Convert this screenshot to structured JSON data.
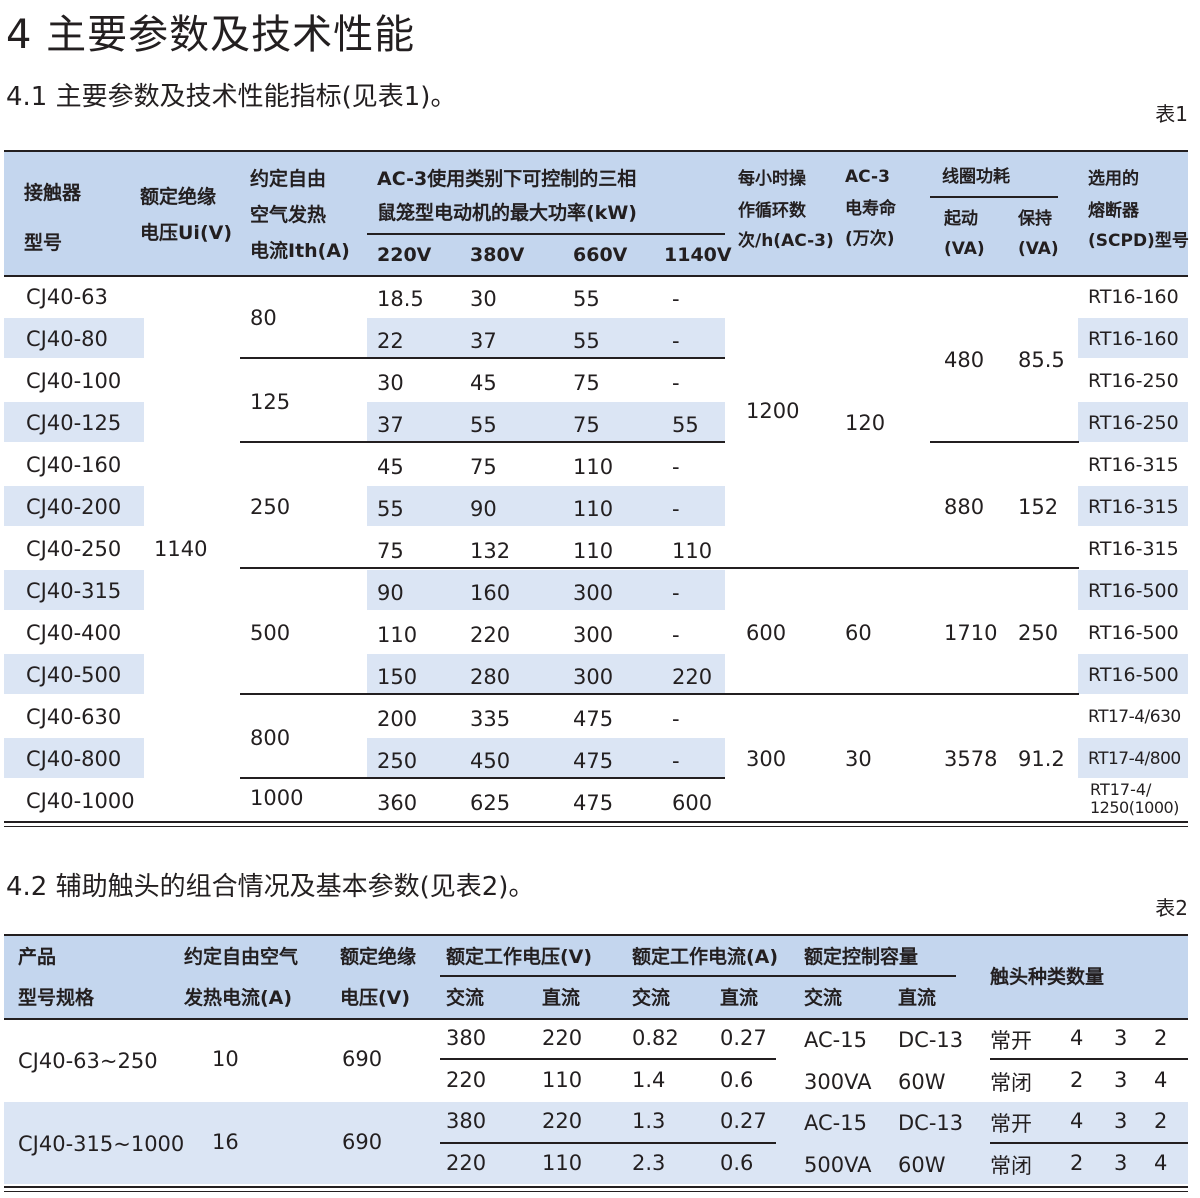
{
  "heading_main": "4 主要参数及技术性能",
  "section1": {
    "title": "4.1 主要参数及技术性能指标(见表1)。",
    "table_label": "表1"
  },
  "table1": {
    "headers": {
      "model": [
        "接触器",
        "型号"
      ],
      "ui": [
        "额定绝缘",
        "电压Ui(V)"
      ],
      "ith": [
        "约定自由",
        "空气发热",
        "电流Ith(A)"
      ],
      "power_group": [
        "AC-3使用类别下可控制的三相",
        "鼠笼型电动机的最大功率(kW)"
      ],
      "voltages": [
        "220V",
        "380V",
        "660V",
        "1140V"
      ],
      "ops": [
        "每小时操",
        "作循环数",
        "次/h(AC-3)"
      ],
      "life": [
        "AC-3",
        "电寿命",
        "(万次)"
      ],
      "coil": "线圈功耗",
      "coil_start": [
        "起动",
        "(VA)"
      ],
      "coil_hold": [
        "保持",
        "(VA)"
      ],
      "fuse": [
        "选用的",
        "熔断器",
        "(SCPD)型号"
      ]
    },
    "models": [
      "CJ40-63",
      "CJ40-80",
      "CJ40-100",
      "CJ40-125",
      "CJ40-160",
      "CJ40-200",
      "CJ40-250",
      "CJ40-315",
      "CJ40-400",
      "CJ40-500",
      "CJ40-630",
      "CJ40-800",
      "CJ40-1000"
    ],
    "ui_value": "1140",
    "ith_values": [
      "80",
      "125",
      "250",
      "500",
      "800",
      "1000"
    ],
    "power": [
      [
        "18.5",
        "30",
        "55",
        "-"
      ],
      [
        "22",
        "37",
        "55",
        "-"
      ],
      [
        "30",
        "45",
        "75",
        "-"
      ],
      [
        "37",
        "55",
        "75",
        "55"
      ],
      [
        "45",
        "75",
        "110",
        "-"
      ],
      [
        "55",
        "90",
        "110",
        "-"
      ],
      [
        "75",
        "132",
        "110",
        "110"
      ],
      [
        "90",
        "160",
        "300",
        "-"
      ],
      [
        "110",
        "220",
        "300",
        "-"
      ],
      [
        "150",
        "280",
        "300",
        "220"
      ],
      [
        "200",
        "335",
        "475",
        "-"
      ],
      [
        "250",
        "450",
        "475",
        "-"
      ],
      [
        "360",
        "625",
        "475",
        "600"
      ]
    ],
    "ops_values": [
      "1200",
      "600",
      "300"
    ],
    "life_values": [
      "120",
      "60",
      "30"
    ],
    "coil_start_values": [
      "480",
      "880",
      "1710",
      "3578"
    ],
    "coil_hold_values": [
      "85.5",
      "152",
      "250",
      "91.2"
    ],
    "fuses": [
      "RT16-160",
      "RT16-160",
      "RT16-250",
      "RT16-250",
      "RT16-315",
      "RT16-315",
      "RT16-315",
      "RT16-500",
      "RT16-500",
      "RT16-500",
      "RT17-4/630",
      "RT17-4/800"
    ],
    "fuse_last": [
      "RT17-4/",
      "1250(1000)"
    ]
  },
  "section2": {
    "title": "4.2 辅助触头的组合情况及基本参数(见表2)。",
    "table_label": "表2"
  },
  "table2": {
    "headers": {
      "model": [
        "产品",
        "型号规格"
      ],
      "ith": [
        "约定自由空气",
        "发热电流(A)"
      ],
      "ui": [
        "额定绝缘",
        "电压(V)"
      ],
      "ue": "额定工作电压(V)",
      "ie": "额定工作电流(A)",
      "cap": "额定控制容量",
      "ac": "交流",
      "dc": "直流",
      "contacts": "触头种类数量"
    },
    "groups": [
      {
        "model": "CJ40-63~250",
        "ith": "10",
        "ui": "690",
        "rows": [
          {
            "ue_ac": "380",
            "ue_dc": "220",
            "ie_ac": "0.82",
            "ie_dc": "0.27",
            "cap_ac": "AC-15",
            "cap_dc": "DC-13",
            "type": "常开",
            "n": [
              "4",
              "3",
              "2"
            ]
          },
          {
            "ue_ac": "220",
            "ue_dc": "110",
            "ie_ac": "1.4",
            "ie_dc": "0.6",
            "cap_ac": "300VA",
            "cap_dc": "60W",
            "type": "常闭",
            "n": [
              "2",
              "3",
              "4"
            ]
          }
        ]
      },
      {
        "model": "CJ40-315~1000",
        "ith": "16",
        "ui": "690",
        "rows": [
          {
            "ue_ac": "380",
            "ue_dc": "220",
            "ie_ac": "1.3",
            "ie_dc": "0.27",
            "cap_ac": "AC-15",
            "cap_dc": "DC-13",
            "type": "常开",
            "n": [
              "4",
              "3",
              "2"
            ]
          },
          {
            "ue_ac": "220",
            "ue_dc": "110",
            "ie_ac": "2.3",
            "ie_dc": "0.6",
            "cap_ac": "500VA",
            "cap_dc": "60W",
            "type": "常闭",
            "n": [
              "2",
              "3",
              "4"
            ]
          }
        ]
      }
    ]
  },
  "colors": {
    "header_band": "#c4d6ee",
    "row_band": "#dbe5f4",
    "rule": "#231f20"
  }
}
